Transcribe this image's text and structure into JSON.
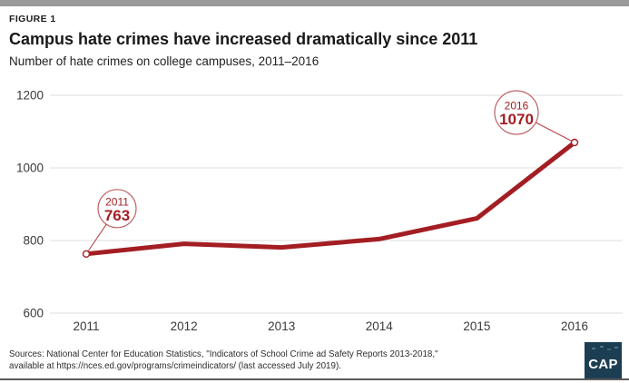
{
  "header": {
    "kicker": "FIGURE 1",
    "title": "Campus hate crimes have increased dramatically since 2011",
    "subtitle": "Number of hate crimes on college campuses, 2011–2016"
  },
  "chart_data": {
    "type": "line",
    "categories": [
      "2011",
      "2012",
      "2013",
      "2014",
      "2015",
      "2016"
    ],
    "values": [
      763,
      791,
      781,
      804,
      861,
      1070
    ],
    "ylim": [
      600,
      1200
    ],
    "yticks": [
      600,
      800,
      1000,
      1200
    ],
    "grid": "horizontal",
    "legend": "none",
    "xlabel": "",
    "ylabel": "",
    "callouts": [
      {
        "year": "2011",
        "value": 763
      },
      {
        "year": "2016",
        "value": 1070
      }
    ],
    "line_color": "#A31E23",
    "grid_color": "#DDDDDD",
    "axis_color": "#3A3A3A"
  },
  "sources": {
    "line1": "Sources: National Center for Education Statistics, \"Indicators of School Crime ad Safety Reports 2013-2018,\"",
    "line2": "available at https://nces.ed.gov/programs/crimeindicators/ (last accessed July 2019)."
  },
  "footer": {
    "logo_text": "CAP"
  },
  "colors": {
    "accent_red": "#A31E23",
    "logo_navy": "#1C3E52",
    "top_bar_gray": "#9A9A9A",
    "bottom_rule_gray": "#595959"
  }
}
